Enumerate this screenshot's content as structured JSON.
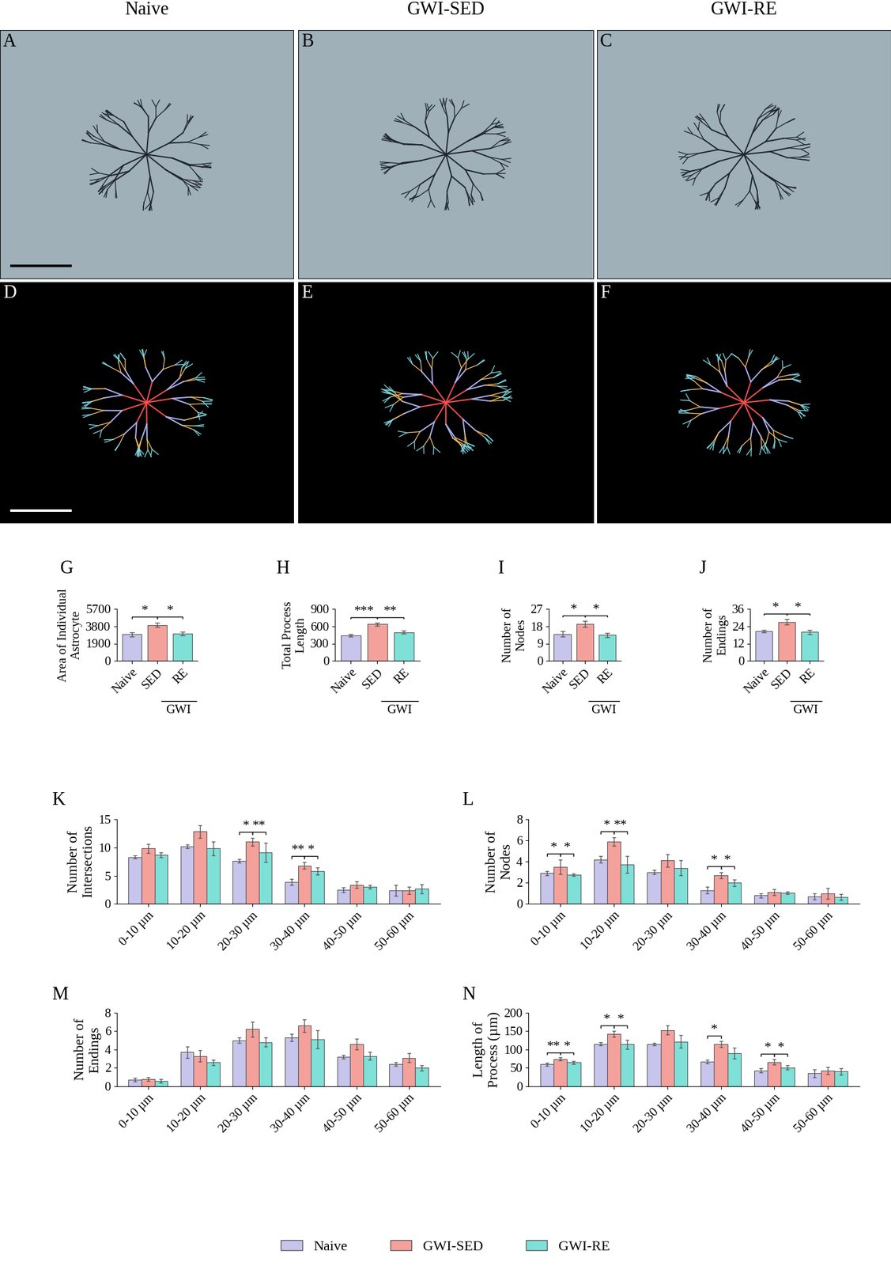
{
  "figure": {
    "column_titles": [
      "Naive",
      "GWI-SED",
      "GWI-RE"
    ],
    "image_panels": [
      {
        "label": "A"
      },
      {
        "label": "B"
      },
      {
        "label": "C"
      },
      {
        "label": "D"
      },
      {
        "label": "E"
      },
      {
        "label": "F"
      }
    ]
  },
  "chart_data": [
    {
      "panel": "G",
      "type": "bar",
      "ylabel": "Area of Individual\nAstrocyte",
      "categories": [
        "Naive",
        "SED",
        "RE"
      ],
      "group_label": "GWI",
      "values": [
        2900,
        3950,
        3000
      ],
      "errors": [
        250,
        250,
        200
      ],
      "colors": [
        "#c7c5ec",
        "#f4a19c",
        "#7fe0d7"
      ],
      "ylim": [
        0,
        5700
      ],
      "yticks": [
        0,
        1900,
        3800,
        5700
      ],
      "significance": [
        {
          "pair": [
            0,
            1
          ],
          "text": "*"
        },
        {
          "pair": [
            1,
            2
          ],
          "text": "*"
        }
      ]
    },
    {
      "panel": "H",
      "type": "bar",
      "ylabel": "Total Process\nLength",
      "categories": [
        "Naive",
        "SED",
        "RE"
      ],
      "group_label": "GWI",
      "values": [
        440,
        635,
        495
      ],
      "errors": [
        25,
        25,
        25
      ],
      "colors": [
        "#c7c5ec",
        "#f4a19c",
        "#7fe0d7"
      ],
      "ylim": [
        0,
        900
      ],
      "yticks": [
        0,
        300,
        600,
        900
      ],
      "significance": [
        {
          "pair": [
            0,
            1
          ],
          "text": "***"
        },
        {
          "pair": [
            1,
            2
          ],
          "text": "**"
        }
      ]
    },
    {
      "panel": "I",
      "type": "bar",
      "ylabel": "Number of\nNodes",
      "categories": [
        "Naive",
        "SED",
        "RE"
      ],
      "group_label": "GWI",
      "values": [
        14,
        19.2,
        13.4
      ],
      "errors": [
        1.3,
        1.5,
        1.2
      ],
      "colors": [
        "#c7c5ec",
        "#f4a19c",
        "#7fe0d7"
      ],
      "ylim": [
        0,
        27
      ],
      "yticks": [
        0,
        9,
        18,
        27
      ],
      "significance": [
        {
          "pair": [
            0,
            1
          ],
          "text": "*"
        },
        {
          "pair": [
            1,
            2
          ],
          "text": "*"
        }
      ]
    },
    {
      "panel": "J",
      "type": "bar",
      "ylabel": "Number of\nEndings",
      "categories": [
        "Naive",
        "SED",
        "RE"
      ],
      "group_label": "GWI",
      "values": [
        20.5,
        27,
        20
      ],
      "errors": [
        0.8,
        1.8,
        1.5
      ],
      "colors": [
        "#c7c5ec",
        "#f4a19c",
        "#7fe0d7"
      ],
      "ylim": [
        0,
        36
      ],
      "yticks": [
        0,
        12,
        24,
        36
      ],
      "significance": [
        {
          "pair": [
            0,
            1
          ],
          "text": "*"
        },
        {
          "pair": [
            1,
            2
          ],
          "text": "*"
        }
      ]
    },
    {
      "panel": "K",
      "type": "grouped_bar",
      "ylabel": "Number of\nIntersections",
      "legend": "bottom",
      "categories": [
        "0-10 µm",
        "10-20 µm",
        "20-30 µm",
        "30-40 µm",
        "40-50 µm",
        "50-60 µm"
      ],
      "ylim": [
        0,
        15
      ],
      "yticks": [
        0,
        5,
        10,
        15
      ],
      "series": [
        {
          "name": "Naive",
          "color": "#c7c5ec",
          "values": [
            8.3,
            10.2,
            7.6,
            3.9,
            2.5,
            2.4
          ],
          "errors": [
            0.3,
            0.3,
            0.3,
            0.5,
            0.4,
            1.0
          ]
        },
        {
          "name": "GWI-SED",
          "color": "#f4a19c",
          "values": [
            9.8,
            12.8,
            11.0,
            6.8,
            3.4,
            2.4
          ],
          "errors": [
            0.8,
            1.1,
            0.7,
            0.6,
            0.6,
            0.6
          ]
        },
        {
          "name": "GWI-RE",
          "color": "#7fe0d7",
          "values": [
            8.7,
            9.8,
            9.1,
            5.8,
            3.0,
            2.7
          ],
          "errors": [
            0.4,
            1.2,
            1.7,
            0.6,
            0.3,
            0.8
          ]
        }
      ],
      "significance": [
        {
          "category": 2,
          "pair": [
            0,
            1
          ],
          "text": "*"
        },
        {
          "category": 2,
          "pair": [
            1,
            2
          ],
          "text": "**"
        },
        {
          "category": 3,
          "pair": [
            0,
            1
          ],
          "text": "**"
        },
        {
          "category": 3,
          "pair": [
            1,
            2
          ],
          "text": "*"
        }
      ]
    },
    {
      "panel": "L",
      "type": "grouped_bar",
      "ylabel": "Number of\nNodes",
      "categories": [
        "0-10 µm",
        "10-20 µm",
        "20-30 µm",
        "30-40 µm",
        "40-50 µm",
        "50-60 µm"
      ],
      "ylim": [
        0,
        8
      ],
      "yticks": [
        0,
        2,
        4,
        6,
        8
      ],
      "series": [
        {
          "name": "Naive",
          "color": "#c7c5ec",
          "values": [
            2.9,
            4.2,
            3.0,
            1.3,
            0.8,
            0.7
          ],
          "errors": [
            0.2,
            0.3,
            0.2,
            0.3,
            0.2,
            0.3
          ]
        },
        {
          "name": "GWI-SED",
          "color": "#f4a19c",
          "values": [
            3.5,
            5.9,
            4.1,
            2.7,
            1.1,
            1.0
          ],
          "errors": [
            0.7,
            0.4,
            0.6,
            0.3,
            0.3,
            0.5
          ]
        },
        {
          "name": "GWI-RE",
          "color": "#7fe0d7",
          "values": [
            2.75,
            3.7,
            3.4,
            2.0,
            1.05,
            0.65
          ],
          "errors": [
            0.1,
            0.8,
            0.7,
            0.3,
            0.1,
            0.3
          ]
        }
      ],
      "significance": [
        {
          "category": 0,
          "pair": [
            0,
            1
          ],
          "text": "*"
        },
        {
          "category": 0,
          "pair": [
            1,
            2
          ],
          "text": "*"
        },
        {
          "category": 1,
          "pair": [
            0,
            1
          ],
          "text": "*"
        },
        {
          "category": 1,
          "pair": [
            1,
            2
          ],
          "text": "**"
        },
        {
          "category": 3,
          "pair": [
            0,
            1
          ],
          "text": "*"
        },
        {
          "category": 3,
          "pair": [
            1,
            2
          ],
          "text": "*"
        }
      ]
    },
    {
      "panel": "M",
      "type": "grouped_bar",
      "ylabel": "Number of\nEndings",
      "categories": [
        "0-10 µm",
        "10-20 µm",
        "20-30 µm",
        "30-40 µm",
        "40-50 µm",
        "50-60 µm"
      ],
      "ylim": [
        0,
        8
      ],
      "yticks": [
        0,
        2,
        4,
        6,
        8
      ],
      "series": [
        {
          "name": "Naive",
          "color": "#c7c5ec",
          "values": [
            0.7,
            3.7,
            5.0,
            5.3,
            3.2,
            2.4
          ],
          "errors": [
            0.2,
            0.6,
            0.3,
            0.4,
            0.2,
            0.2
          ]
        },
        {
          "name": "GWI-SED",
          "color": "#f4a19c",
          "values": [
            0.8,
            3.3,
            6.2,
            6.6,
            4.6,
            3.1
          ],
          "errors": [
            0.2,
            0.6,
            0.8,
            0.7,
            0.6,
            0.5
          ]
        },
        {
          "name": "GWI-RE",
          "color": "#7fe0d7",
          "values": [
            0.6,
            2.6,
            4.8,
            5.1,
            3.3,
            2.0
          ],
          "errors": [
            0.2,
            0.3,
            0.5,
            1.0,
            0.4,
            0.3
          ]
        }
      ],
      "significance": []
    },
    {
      "panel": "N",
      "type": "grouped_bar",
      "ylabel": "Length of\nProcess (µm)",
      "categories": [
        "0-10 µm",
        "10-20 µm",
        "20-30 µm",
        "30-40 µm",
        "40-50 µm",
        "50-60 µm"
      ],
      "ylim": [
        0,
        200
      ],
      "yticks": [
        0,
        50,
        100,
        150,
        200
      ],
      "series": [
        {
          "name": "Naive",
          "color": "#c7c5ec",
          "values": [
            60,
            115,
            115,
            67,
            43,
            35
          ],
          "errors": [
            4,
            4,
            3,
            5,
            6,
            10
          ]
        },
        {
          "name": "GWI-SED",
          "color": "#f4a19c",
          "values": [
            74,
            143,
            153,
            115,
            66,
            43
          ],
          "errors": [
            4,
            8,
            12,
            8,
            8,
            10
          ]
        },
        {
          "name": "GWI-RE",
          "color": "#7fe0d7",
          "values": [
            65,
            114,
            122,
            90,
            51,
            40
          ],
          "errors": [
            4,
            12,
            18,
            14,
            6,
            9
          ]
        }
      ],
      "significance": [
        {
          "category": 0,
          "pair": [
            0,
            1
          ],
          "text": "**"
        },
        {
          "category": 0,
          "pair": [
            1,
            2
          ],
          "text": "*"
        },
        {
          "category": 1,
          "pair": [
            0,
            1
          ],
          "text": "*"
        },
        {
          "category": 1,
          "pair": [
            1,
            2
          ],
          "text": "*"
        },
        {
          "category": 3,
          "pair": [
            0,
            1
          ],
          "text": "*"
        },
        {
          "category": 4,
          "pair": [
            0,
            1
          ],
          "text": "*"
        },
        {
          "category": 4,
          "pair": [
            1,
            2
          ],
          "text": "*"
        }
      ]
    }
  ]
}
